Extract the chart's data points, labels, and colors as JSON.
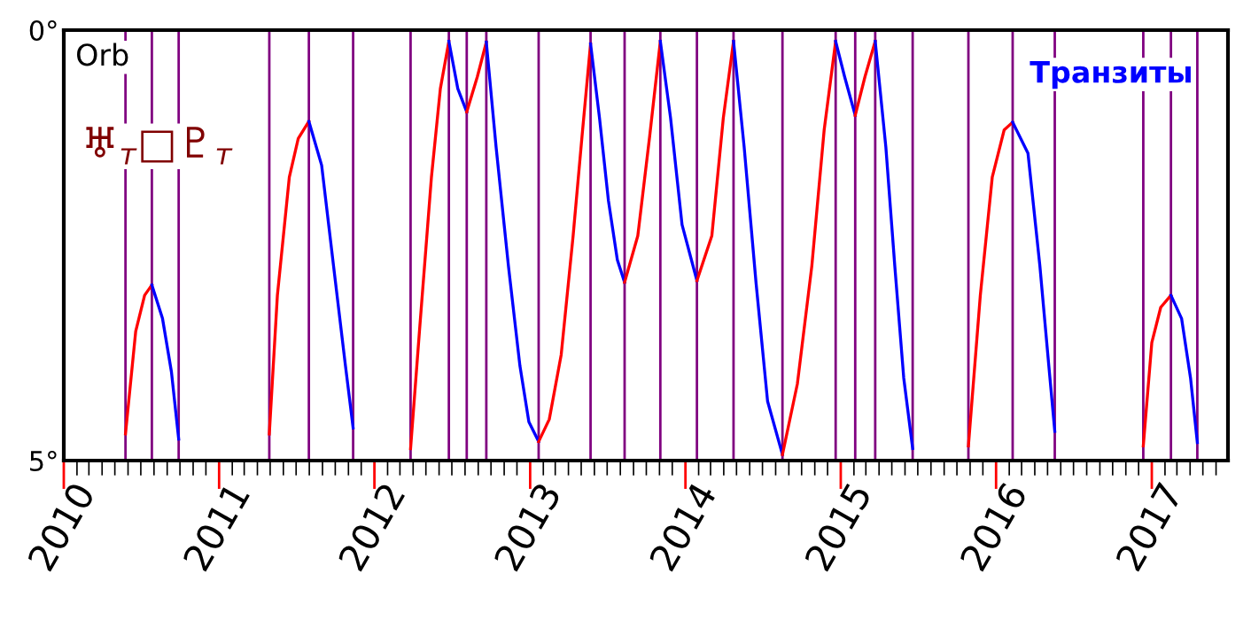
{
  "chart_data": {
    "type": "line",
    "annotations": [
      "Orb",
      "♅$_{т}$□♇$_{т}$",
      "Транзиты"
    ],
    "xlim": [
      "2010-01-01",
      "2017-06-29"
    ],
    "xticks": [
      "2010",
      "2011",
      "2012",
      "2013",
      "2014",
      "2015",
      "2016",
      "2017"
    ],
    "ylim": [
      5,
      0
    ],
    "yticks": [
      {
        "value": 0,
        "label": "0°"
      },
      {
        "value": 5,
        "label": "5°"
      }
    ],
    "series": [
      {
        "color": "#ff0000",
        "x": [
          "2010-05-26",
          "2010-06-19",
          "2010-07-10",
          "2010-07-27"
        ],
        "values": [
          4.69,
          3.5,
          3.08,
          2.96
        ]
      },
      {
        "color": "#0000ff",
        "x": [
          "2010-07-27",
          "2010-08-21",
          "2010-09-11",
          "2010-09-28"
        ],
        "values": [
          2.96,
          3.35,
          3.97,
          4.75
        ]
      },
      {
        "color": "#ff0000",
        "x": [
          "2011-04-29",
          "2011-05-18",
          "2011-06-15",
          "2011-07-06",
          "2011-07-31"
        ],
        "values": [
          4.69,
          3.08,
          1.71,
          1.26,
          1.06
        ]
      },
      {
        "color": "#0000ff",
        "x": [
          "2011-07-31",
          "2011-08-30",
          "2011-09-27",
          "2011-10-25",
          "2011-11-12"
        ],
        "values": [
          1.06,
          1.57,
          2.74,
          3.9,
          4.62
        ]
      },
      {
        "color": "#ff0000",
        "x": [
          "2012-03-26",
          "2012-04-16",
          "2012-05-14",
          "2012-06-04",
          "2012-06-24"
        ],
        "values": [
          4.86,
          3.49,
          1.71,
          0.68,
          0.13
        ]
      },
      {
        "color": "#0000ff",
        "x": [
          "2012-06-24",
          "2012-07-15",
          "2012-08-05"
        ],
        "values": [
          0.13,
          0.68,
          0.95
        ]
      },
      {
        "color": "#ff0000",
        "x": [
          "2012-08-05",
          "2012-08-30",
          "2012-09-20"
        ],
        "values": [
          0.95,
          0.54,
          0.14
        ]
      },
      {
        "color": "#0000ff",
        "x": [
          "2012-09-20",
          "2012-10-13",
          "2012-11-11",
          "2012-12-08",
          "2012-12-29",
          "2013-01-21"
        ],
        "values": [
          0.14,
          1.36,
          2.74,
          3.9,
          4.55,
          4.78
        ]
      },
      {
        "color": "#ff0000",
        "x": [
          "2013-01-21",
          "2013-02-15",
          "2013-03-15",
          "2013-04-12",
          "2013-05-03",
          "2013-05-23"
        ],
        "values": [
          4.78,
          4.52,
          3.77,
          2.39,
          1.23,
          0.16
        ]
      },
      {
        "color": "#0000ff",
        "x": [
          "2013-05-23",
          "2013-06-13",
          "2013-07-04",
          "2013-07-25",
          "2013-08-11"
        ],
        "values": [
          0.16,
          1.02,
          1.98,
          2.67,
          2.93
        ]
      },
      {
        "color": "#ff0000",
        "x": [
          "2013-08-11",
          "2013-09-11",
          "2013-10-09",
          "2013-11-03"
        ],
        "values": [
          2.93,
          2.39,
          1.23,
          0.13
        ]
      },
      {
        "color": "#0000ff",
        "x": [
          "2013-11-03",
          "2013-11-27",
          "2013-12-24",
          "2014-01-28"
        ],
        "values": [
          0.13,
          1.02,
          2.26,
          2.91
        ]
      },
      {
        "color": "#ff0000",
        "x": [
          "2014-01-28",
          "2014-03-04",
          "2014-03-31",
          "2014-04-24"
        ],
        "values": [
          2.91,
          2.39,
          1.02,
          0.13
        ]
      },
      {
        "color": "#0000ff",
        "x": [
          "2014-04-24",
          "2014-05-19",
          "2014-06-16",
          "2014-07-13",
          "2014-08-17"
        ],
        "values": [
          0.13,
          1.36,
          2.94,
          4.31,
          4.93
        ]
      },
      {
        "color": "#ff0000",
        "x": [
          "2014-08-17",
          "2014-09-21",
          "2014-10-25",
          "2014-11-23",
          "2014-12-20"
        ],
        "values": [
          4.93,
          4.11,
          2.74,
          1.16,
          0.13
        ]
      },
      {
        "color": "#0000ff",
        "x": [
          "2014-12-20",
          "2015-01-10",
          "2015-02-04"
        ],
        "values": [
          0.13,
          0.54,
          0.99
        ]
      },
      {
        "color": "#ff0000",
        "x": [
          "2015-02-04",
          "2015-02-27",
          "2015-03-23"
        ],
        "values": [
          0.99,
          0.54,
          0.13
        ]
      },
      {
        "color": "#0000ff",
        "x": [
          "2015-03-23",
          "2015-04-17",
          "2015-05-08",
          "2015-05-29",
          "2015-06-19"
        ],
        "values": [
          0.13,
          1.36,
          2.74,
          4.04,
          4.86
        ]
      },
      {
        "color": "#ff0000",
        "x": [
          "2015-10-28",
          "2015-11-25",
          "2015-12-23",
          "2016-01-20",
          "2016-02-09"
        ],
        "values": [
          4.83,
          3.08,
          1.71,
          1.16,
          1.07
        ]
      },
      {
        "color": "#0000ff",
        "x": [
          "2016-02-09",
          "2016-03-16",
          "2016-04-13",
          "2016-05-04",
          "2016-05-18"
        ],
        "values": [
          1.07,
          1.43,
          2.74,
          3.9,
          4.66
        ]
      },
      {
        "color": "#ff0000",
        "x": [
          "2016-12-12",
          "2017-01-01",
          "2017-01-22",
          "2017-02-15"
        ],
        "values": [
          4.83,
          3.63,
          3.22,
          3.08
        ]
      },
      {
        "color": "#0000ff",
        "x": [
          "2017-02-15",
          "2017-03-12",
          "2017-04-02",
          "2017-04-18"
        ],
        "values": [
          3.08,
          3.35,
          4.04,
          4.79
        ]
      }
    ],
    "ref_lines": [
      {
        "axis": "x",
        "value": "2010-05-26",
        "color": "#800080"
      },
      {
        "axis": "x",
        "value": "2010-07-27",
        "color": "#800080"
      },
      {
        "axis": "x",
        "value": "2010-09-28",
        "color": "#800080"
      },
      {
        "axis": "x",
        "value": "2011-04-29",
        "color": "#800080"
      },
      {
        "axis": "x",
        "value": "2011-07-31",
        "color": "#800080"
      },
      {
        "axis": "x",
        "value": "2011-11-12",
        "color": "#800080"
      },
      {
        "axis": "x",
        "value": "2012-03-26",
        "color": "#800080"
      },
      {
        "axis": "x",
        "value": "2012-06-24",
        "color": "#800080"
      },
      {
        "axis": "x",
        "value": "2012-08-05",
        "color": "#800080"
      },
      {
        "axis": "x",
        "value": "2012-09-20",
        "color": "#800080"
      },
      {
        "axis": "x",
        "value": "2013-01-21",
        "color": "#800080"
      },
      {
        "axis": "x",
        "value": "2013-05-23",
        "color": "#800080"
      },
      {
        "axis": "x",
        "value": "2013-08-11",
        "color": "#800080"
      },
      {
        "axis": "x",
        "value": "2013-11-03",
        "color": "#800080"
      },
      {
        "axis": "x",
        "value": "2014-01-28",
        "color": "#800080"
      },
      {
        "axis": "x",
        "value": "2014-04-24",
        "color": "#800080"
      },
      {
        "axis": "x",
        "value": "2014-08-17",
        "color": "#800080"
      },
      {
        "axis": "x",
        "value": "2014-12-20",
        "color": "#800080"
      },
      {
        "axis": "x",
        "value": "2015-02-04",
        "color": "#800080"
      },
      {
        "axis": "x",
        "value": "2015-03-23",
        "color": "#800080"
      },
      {
        "axis": "x",
        "value": "2015-06-19",
        "color": "#800080"
      },
      {
        "axis": "x",
        "value": "2015-10-28",
        "color": "#800080"
      },
      {
        "axis": "x",
        "value": "2016-02-09",
        "color": "#800080"
      },
      {
        "axis": "x",
        "value": "2016-05-18",
        "color": "#800080"
      },
      {
        "axis": "x",
        "value": "2016-12-12",
        "color": "#800080"
      },
      {
        "axis": "x",
        "value": "2017-02-15",
        "color": "#800080"
      },
      {
        "axis": "x",
        "value": "2017-04-18",
        "color": "#800080"
      }
    ]
  }
}
